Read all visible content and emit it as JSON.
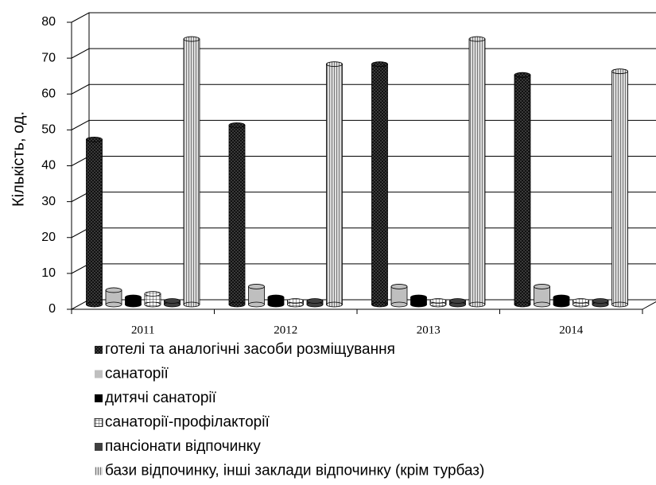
{
  "chart_data": {
    "type": "bar3d",
    "y_label": "Кількість, од.",
    "categories": [
      "2011",
      "2012",
      "2013",
      "2014"
    ],
    "series": [
      {
        "name": "готелі та аналогічні засоби розміщування",
        "color": "#1a1a1a",
        "values": [
          46,
          50,
          67,
          64
        ]
      },
      {
        "name": "санаторії",
        "color": "#bfbfbf",
        "values": [
          4,
          5,
          5,
          5
        ]
      },
      {
        "name": "дитячі санаторії",
        "color": "#000000",
        "values": [
          2,
          2,
          2,
          2
        ]
      },
      {
        "name": "санаторії-профілакторії",
        "color": "#ffffff",
        "values": [
          3,
          1,
          1,
          1
        ]
      },
      {
        "name": "пансіонати відпочинку",
        "color": "#404040",
        "values": [
          1,
          1,
          1,
          1
        ]
      },
      {
        "name": "бази відпочинку, інші заклади відпочинку (крім турбаз)",
        "color": "#d0d0d0",
        "values": [
          74,
          67,
          74,
          65
        ]
      }
    ],
    "ylim": [
      0,
      80
    ],
    "yticks": [
      0,
      10,
      20,
      30,
      40,
      50,
      60,
      70,
      80
    ],
    "grid": true
  }
}
